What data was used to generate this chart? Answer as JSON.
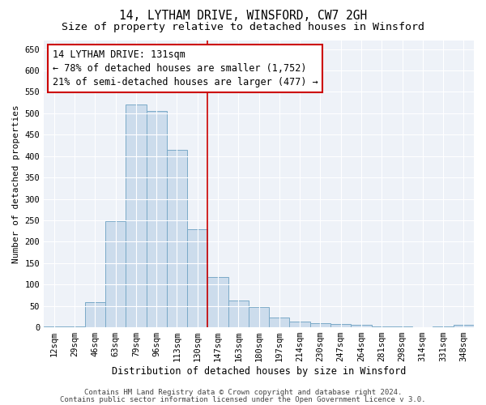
{
  "title": "14, LYTHAM DRIVE, WINSFORD, CW7 2GH",
  "subtitle": "Size of property relative to detached houses in Winsford",
  "xlabel": "Distribution of detached houses by size in Winsford",
  "ylabel": "Number of detached properties",
  "categories": [
    "12sqm",
    "29sqm",
    "46sqm",
    "63sqm",
    "79sqm",
    "96sqm",
    "113sqm",
    "130sqm",
    "147sqm",
    "163sqm",
    "180sqm",
    "197sqm",
    "214sqm",
    "230sqm",
    "247sqm",
    "264sqm",
    "281sqm",
    "298sqm",
    "314sqm",
    "331sqm",
    "348sqm"
  ],
  "values": [
    2,
    2,
    58,
    248,
    520,
    505,
    415,
    230,
    117,
    63,
    47,
    23,
    13,
    10,
    7,
    5,
    2,
    2,
    0,
    2,
    5
  ],
  "bar_color": "#ccdcec",
  "bar_edge_color": "#7aaac8",
  "vline_index": 7,
  "vline_color": "#cc0000",
  "annotation_text": "14 LYTHAM DRIVE: 131sqm\n← 78% of detached houses are smaller (1,752)\n21% of semi-detached houses are larger (477) →",
  "annotation_box_facecolor": "#ffffff",
  "annotation_box_edgecolor": "#cc0000",
  "ylim": [
    0,
    670
  ],
  "yticks": [
    0,
    50,
    100,
    150,
    200,
    250,
    300,
    350,
    400,
    450,
    500,
    550,
    600,
    650
  ],
  "footer1": "Contains HM Land Registry data © Crown copyright and database right 2024.",
  "footer2": "Contains public sector information licensed under the Open Government Licence v 3.0.",
  "bg_color": "#ffffff",
  "plot_bg_color": "#eef2f8",
  "grid_color": "#ffffff",
  "title_fontsize": 10.5,
  "subtitle_fontsize": 9.5,
  "xlabel_fontsize": 8.5,
  "ylabel_fontsize": 8,
  "tick_fontsize": 7.5,
  "annotation_fontsize": 8.5,
  "footer_fontsize": 6.5
}
